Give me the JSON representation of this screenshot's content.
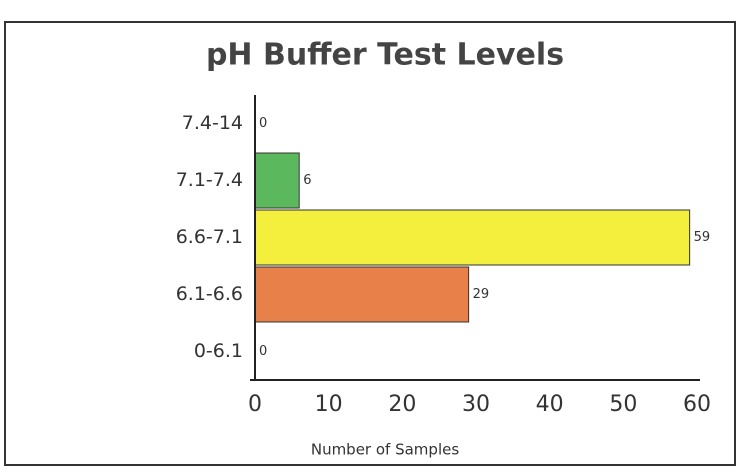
{
  "chart_data": {
    "type": "barh",
    "title": "pH Buffer Test Levels",
    "categories": [
      "7.4-14",
      "7.1-7.4",
      "6.6-7.1",
      "6.1-6.6",
      "0-6.1"
    ],
    "values": [
      0,
      6,
      59,
      29,
      0
    ],
    "colors": [
      "#5cb85c",
      "#5cb85c",
      "#f3ef3c",
      "#e8804a",
      "#e8804a"
    ],
    "xlabel": "Number of Samples",
    "xlim": [
      0,
      60
    ],
    "xticks": [
      0,
      10,
      20,
      30,
      40,
      50,
      60
    ],
    "grid": false
  }
}
